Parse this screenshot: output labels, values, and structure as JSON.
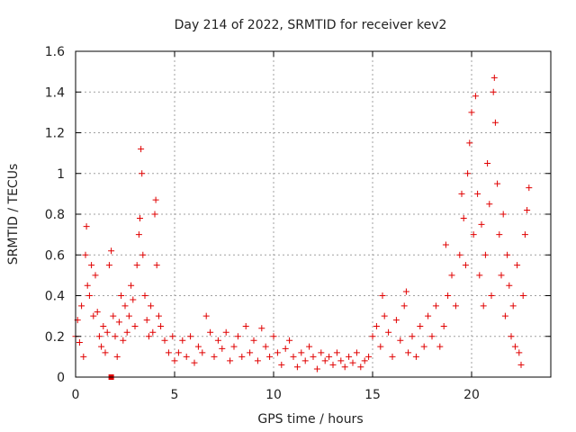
{
  "chart_data": {
    "type": "scatter",
    "title": "Day 214 of 2022, SRMTID for receiver kev2",
    "xlabel": "GPS time / hours",
    "ylabel": "SRMTID / TECUs",
    "xlim": [
      0,
      24
    ],
    "ylim": [
      0,
      1.6
    ],
    "xticks": [
      0,
      5,
      10,
      15,
      20
    ],
    "xtick_labels": [
      "0",
      "5",
      "10",
      "15",
      "20"
    ],
    "yticks": [
      0,
      0.2,
      0.4,
      0.6,
      0.8,
      1.0,
      1.2,
      1.4,
      1.6
    ],
    "ytick_labels": [
      "0",
      "0.2",
      "0.4",
      "0.6",
      "0.8",
      "1",
      "1.2",
      "1.4",
      "1.6"
    ],
    "grid": true,
    "marker": "plus",
    "color": "#e00000",
    "square_marker": {
      "x": 1.8,
      "y": 0.0
    },
    "series": [
      {
        "name": "SRMTID",
        "points": [
          [
            0.0,
            0.2
          ],
          [
            0.1,
            0.28
          ],
          [
            0.2,
            0.17
          ],
          [
            0.3,
            0.35
          ],
          [
            0.4,
            0.1
          ],
          [
            0.5,
            0.6
          ],
          [
            0.55,
            0.74
          ],
          [
            0.6,
            0.45
          ],
          [
            0.7,
            0.4
          ],
          [
            0.8,
            0.55
          ],
          [
            0.9,
            0.3
          ],
          [
            1.0,
            0.5
          ],
          [
            1.1,
            0.32
          ],
          [
            1.2,
            0.2
          ],
          [
            1.3,
            0.15
          ],
          [
            1.4,
            0.25
          ],
          [
            1.5,
            0.12
          ],
          [
            1.6,
            0.22
          ],
          [
            1.7,
            0.55
          ],
          [
            1.8,
            0.62
          ],
          [
            1.9,
            0.3
          ],
          [
            2.0,
            0.2
          ],
          [
            2.1,
            0.1
          ],
          [
            2.2,
            0.27
          ],
          [
            2.3,
            0.4
          ],
          [
            2.4,
            0.18
          ],
          [
            2.5,
            0.35
          ],
          [
            2.6,
            0.22
          ],
          [
            2.7,
            0.3
          ],
          [
            2.8,
            0.45
          ],
          [
            2.9,
            0.38
          ],
          [
            3.0,
            0.25
          ],
          [
            3.1,
            0.55
          ],
          [
            3.2,
            0.7
          ],
          [
            3.25,
            0.78
          ],
          [
            3.3,
            1.12
          ],
          [
            3.35,
            1.0
          ],
          [
            3.4,
            0.6
          ],
          [
            3.5,
            0.4
          ],
          [
            3.6,
            0.28
          ],
          [
            3.7,
            0.2
          ],
          [
            3.8,
            0.35
          ],
          [
            3.9,
            0.22
          ],
          [
            4.0,
            0.8
          ],
          [
            4.05,
            0.87
          ],
          [
            4.1,
            0.55
          ],
          [
            4.2,
            0.3
          ],
          [
            4.3,
            0.25
          ],
          [
            4.5,
            0.18
          ],
          [
            4.7,
            0.12
          ],
          [
            4.9,
            0.2
          ],
          [
            5.0,
            0.08
          ],
          [
            5.2,
            0.12
          ],
          [
            5.4,
            0.18
          ],
          [
            5.6,
            0.1
          ],
          [
            5.8,
            0.2
          ],
          [
            6.0,
            0.07
          ],
          [
            6.2,
            0.15
          ],
          [
            6.4,
            0.12
          ],
          [
            6.6,
            0.3
          ],
          [
            6.8,
            0.22
          ],
          [
            7.0,
            0.1
          ],
          [
            7.2,
            0.18
          ],
          [
            7.4,
            0.14
          ],
          [
            7.6,
            0.22
          ],
          [
            7.8,
            0.08
          ],
          [
            8.0,
            0.15
          ],
          [
            8.2,
            0.2
          ],
          [
            8.4,
            0.1
          ],
          [
            8.6,
            0.25
          ],
          [
            8.8,
            0.12
          ],
          [
            9.0,
            0.18
          ],
          [
            9.2,
            0.08
          ],
          [
            9.4,
            0.24
          ],
          [
            9.6,
            0.15
          ],
          [
            9.8,
            0.1
          ],
          [
            10.0,
            0.2
          ],
          [
            10.2,
            0.12
          ],
          [
            10.4,
            0.06
          ],
          [
            10.6,
            0.14
          ],
          [
            10.8,
            0.18
          ],
          [
            11.0,
            0.1
          ],
          [
            11.2,
            0.05
          ],
          [
            11.4,
            0.12
          ],
          [
            11.6,
            0.08
          ],
          [
            11.8,
            0.15
          ],
          [
            12.0,
            0.1
          ],
          [
            12.2,
            0.04
          ],
          [
            12.4,
            0.12
          ],
          [
            12.6,
            0.08
          ],
          [
            12.8,
            0.1
          ],
          [
            13.0,
            0.06
          ],
          [
            13.2,
            0.12
          ],
          [
            13.4,
            0.08
          ],
          [
            13.6,
            0.05
          ],
          [
            13.8,
            0.1
          ],
          [
            14.0,
            0.07
          ],
          [
            14.2,
            0.12
          ],
          [
            14.4,
            0.05
          ],
          [
            14.6,
            0.08
          ],
          [
            14.8,
            0.1
          ],
          [
            15.0,
            0.2
          ],
          [
            15.2,
            0.25
          ],
          [
            15.4,
            0.15
          ],
          [
            15.5,
            0.4
          ],
          [
            15.6,
            0.3
          ],
          [
            15.8,
            0.22
          ],
          [
            16.0,
            0.1
          ],
          [
            16.2,
            0.28
          ],
          [
            16.4,
            0.18
          ],
          [
            16.6,
            0.35
          ],
          [
            16.7,
            0.42
          ],
          [
            16.8,
            0.12
          ],
          [
            17.0,
            0.2
          ],
          [
            17.2,
            0.1
          ],
          [
            17.4,
            0.25
          ],
          [
            17.6,
            0.15
          ],
          [
            17.8,
            0.3
          ],
          [
            18.0,
            0.2
          ],
          [
            18.2,
            0.35
          ],
          [
            18.4,
            0.15
          ],
          [
            18.6,
            0.25
          ],
          [
            18.7,
            0.65
          ],
          [
            18.8,
            0.4
          ],
          [
            19.0,
            0.5
          ],
          [
            19.2,
            0.35
          ],
          [
            19.4,
            0.6
          ],
          [
            19.5,
            0.9
          ],
          [
            19.6,
            0.78
          ],
          [
            19.7,
            0.55
          ],
          [
            19.8,
            1.0
          ],
          [
            19.9,
            1.15
          ],
          [
            20.0,
            1.3
          ],
          [
            20.1,
            0.7
          ],
          [
            20.2,
            1.38
          ],
          [
            20.3,
            0.9
          ],
          [
            20.4,
            0.5
          ],
          [
            20.5,
            0.75
          ],
          [
            20.6,
            0.35
          ],
          [
            20.7,
            0.6
          ],
          [
            20.8,
            1.05
          ],
          [
            20.9,
            0.85
          ],
          [
            21.0,
            0.4
          ],
          [
            21.1,
            1.4
          ],
          [
            21.15,
            1.47
          ],
          [
            21.2,
            1.25
          ],
          [
            21.3,
            0.95
          ],
          [
            21.4,
            0.7
          ],
          [
            21.5,
            0.5
          ],
          [
            21.6,
            0.8
          ],
          [
            21.7,
            0.3
          ],
          [
            21.8,
            0.6
          ],
          [
            21.9,
            0.45
          ],
          [
            22.0,
            0.2
          ],
          [
            22.1,
            0.35
          ],
          [
            22.2,
            0.15
          ],
          [
            22.3,
            0.55
          ],
          [
            22.4,
            0.12
          ],
          [
            22.5,
            0.06
          ],
          [
            22.6,
            0.4
          ],
          [
            22.7,
            0.7
          ],
          [
            22.8,
            0.82
          ],
          [
            22.9,
            0.93
          ]
        ]
      }
    ]
  }
}
